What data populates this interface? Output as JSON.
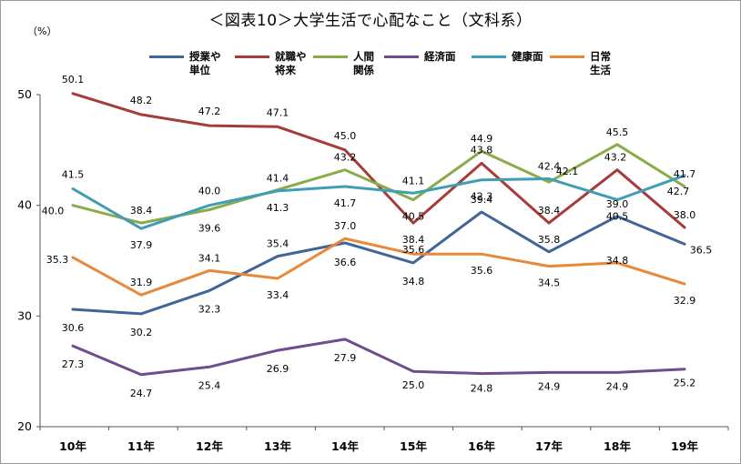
{
  "chart_data": {
    "type": "line",
    "title": "＜図表10＞大学生活で心配なこと（文科系）",
    "y_unit": "（%）",
    "categories": [
      "10年",
      "11年",
      "12年",
      "13年",
      "14年",
      "15年",
      "16年",
      "17年",
      "18年",
      "19年"
    ],
    "ylim": [
      20,
      50
    ],
    "yticks": [
      "20",
      "30",
      "40",
      "50"
    ],
    "grid": false,
    "legend_position": "top",
    "series": [
      {
        "name": "授業や\n単位",
        "color": "#3f6599",
        "values": [
          30.6,
          30.2,
          32.3,
          35.4,
          36.6,
          34.8,
          39.4,
          35.8,
          39.0,
          36.5
        ],
        "labels": [
          "30.6",
          "30.2",
          "32.3",
          "35.4",
          "36.6",
          "34.8",
          "39.4",
          "35.8",
          "39.0",
          "36.5"
        ]
      },
      {
        "name": "就職や\n将来",
        "color": "#a63c38",
        "values": [
          50.1,
          48.2,
          47.2,
          47.1,
          45.0,
          38.4,
          43.8,
          38.4,
          43.2,
          38.0
        ],
        "labels": [
          "50.1",
          "48.2",
          "47.2",
          "47.1",
          "45.0",
          "38.4",
          "43.8",
          "38.4",
          "43.2",
          "38.0"
        ]
      },
      {
        "name": "人間\n関係",
        "color": "#8aab4a",
        "values": [
          40.0,
          38.4,
          39.6,
          41.4,
          43.2,
          40.5,
          44.9,
          42.1,
          45.5,
          41.7
        ],
        "labels": [
          "40.0",
          "38.4",
          "39.6",
          "41.4",
          "43.2",
          "40.5",
          "44.9",
          "42.1",
          "45.5",
          "41.7"
        ]
      },
      {
        "name": "経済面",
        "color": "#6e4c8e",
        "values": [
          27.3,
          24.7,
          25.4,
          26.9,
          27.9,
          25.0,
          24.8,
          24.9,
          24.9,
          25.2
        ],
        "labels": [
          "27.3",
          "24.7",
          "25.4",
          "26.9",
          "27.9",
          "25.0",
          "24.8",
          "24.9",
          "24.9",
          "25.2"
        ]
      },
      {
        "name": "健康面",
        "color": "#3f9db5",
        "values": [
          41.5,
          37.9,
          40.0,
          41.3,
          41.7,
          41.1,
          42.3,
          42.4,
          40.5,
          42.7
        ],
        "labels": [
          "41.5",
          "37.9",
          "40.0",
          "41.3",
          "41.7",
          "41.1",
          "42.3",
          "42.4",
          "40.5",
          "42.7"
        ]
      },
      {
        "name": "日常\n生活",
        "color": "#e8883a",
        "values": [
          35.3,
          31.9,
          34.1,
          33.4,
          37.0,
          35.6,
          35.6,
          34.5,
          34.8,
          32.9
        ],
        "labels": [
          "35.3",
          "31.9",
          "34.1",
          "33.4",
          "37.0",
          "35.6",
          "35.6",
          "34.5",
          "34.8",
          "32.9"
        ]
      }
    ]
  }
}
